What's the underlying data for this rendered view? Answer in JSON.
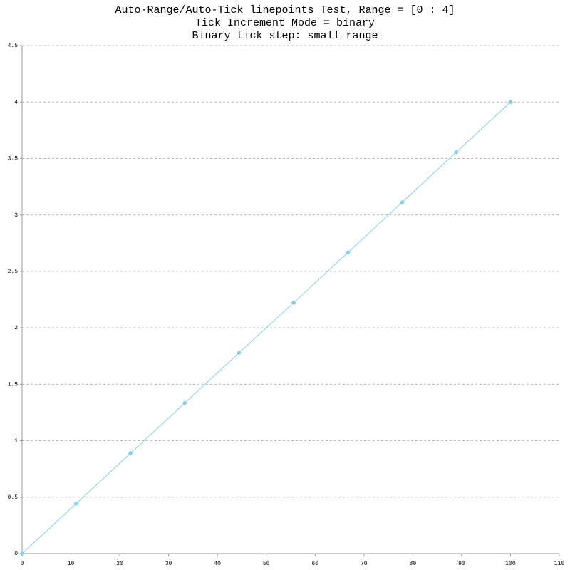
{
  "chart_data": {
    "type": "line",
    "title": "Auto-Range/Auto-Tick linepoints Test, Range = [0 : 4]",
    "subtitle": [
      "Tick Increment Mode = binary",
      "Binary tick step: small range"
    ],
    "x": [
      0,
      11.1,
      22.2,
      33.3,
      44.4,
      55.6,
      66.7,
      77.8,
      88.9,
      100
    ],
    "series": [
      {
        "color": "#87ceeb",
        "values": [
          0,
          0.444,
          0.889,
          1.333,
          1.778,
          2.222,
          2.667,
          3.111,
          3.556,
          4
        ]
      }
    ],
    "xlim": [
      0,
      110
    ],
    "xticks": [
      0,
      10,
      20,
      30,
      40,
      50,
      60,
      70,
      80,
      90,
      100,
      110
    ],
    "ylim": [
      0,
      4.5
    ],
    "yticks": [
      0,
      0.5,
      1,
      1.5,
      2,
      2.5,
      3,
      3.5,
      4,
      4.5
    ],
    "grid": true,
    "markers": true
  }
}
